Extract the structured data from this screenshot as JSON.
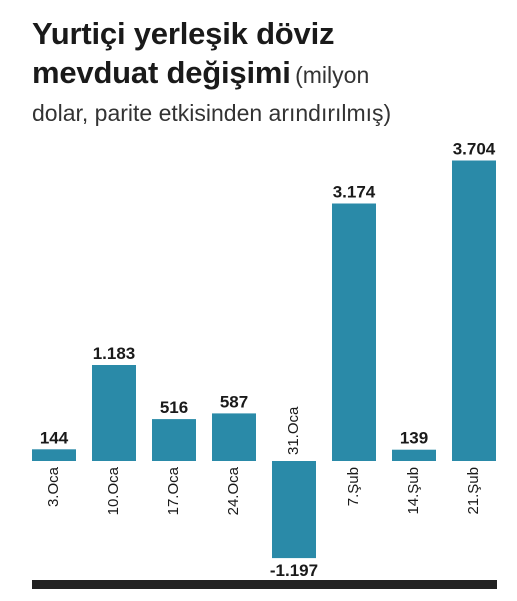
{
  "title": {
    "line1": "Yurtiçi yerleşik döviz",
    "line2_bold": "mevduat değişimi",
    "line2_light": "(milyon",
    "line3": "dolar, parite etkisinden arındırılmış)"
  },
  "colors": {
    "bar": "#2a8aa8",
    "text": "#1a1a1a",
    "rule": "#222222"
  },
  "chart_data": {
    "type": "bar",
    "title": "Yurtiçi yerleşik döviz mevduat değişimi (milyon dolar, parite etkisinden arındırılmış)",
    "xlabel": "",
    "ylabel": "",
    "categories": [
      "3.Oca",
      "10.Oca",
      "17.Oca",
      "24.Oca",
      "31.Oca",
      "7.Şub",
      "14.Şub",
      "21.Şub"
    ],
    "values": [
      144,
      1183,
      516,
      587,
      -1197,
      3174,
      139,
      3704
    ],
    "value_labels": [
      "144",
      "1.183",
      "516",
      "587",
      "-1.197",
      "3.174",
      "139",
      "3.704"
    ],
    "ylim": [
      -1197,
      3704
    ],
    "grid": false,
    "legend": "none"
  }
}
